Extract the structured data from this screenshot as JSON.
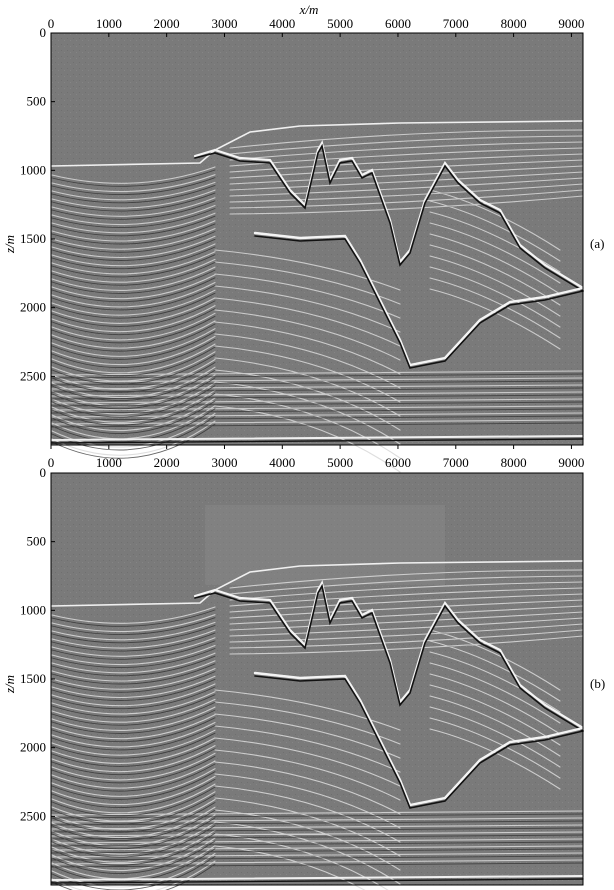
{
  "figure": {
    "x_axis_title": "x/m",
    "z_axis_title": "z/m",
    "x_ticks": [
      "0",
      "1000",
      "2000",
      "3000",
      "4000",
      "5000",
      "6000",
      "7000",
      "8000",
      "9000"
    ],
    "x_tick_values": [
      0,
      1000,
      2000,
      3000,
      4000,
      5000,
      6000,
      7000,
      8000,
      9000
    ],
    "z_ticks": [
      "0",
      "500",
      "1000",
      "1500",
      "2000",
      "2500"
    ],
    "z_tick_values": [
      0,
      500,
      1000,
      1500,
      2000,
      2500
    ],
    "x_range_m": [
      0,
      9200
    ],
    "z_range_m": [
      0,
      3000
    ],
    "colors": {
      "background": "#7a7a7a",
      "reflector_light": "#e6e6e6",
      "reflector_dark": "#1c1c1c",
      "frame": "#000000"
    }
  },
  "panels": [
    {
      "label": "(a)"
    },
    {
      "label": "(b)"
    }
  ]
}
